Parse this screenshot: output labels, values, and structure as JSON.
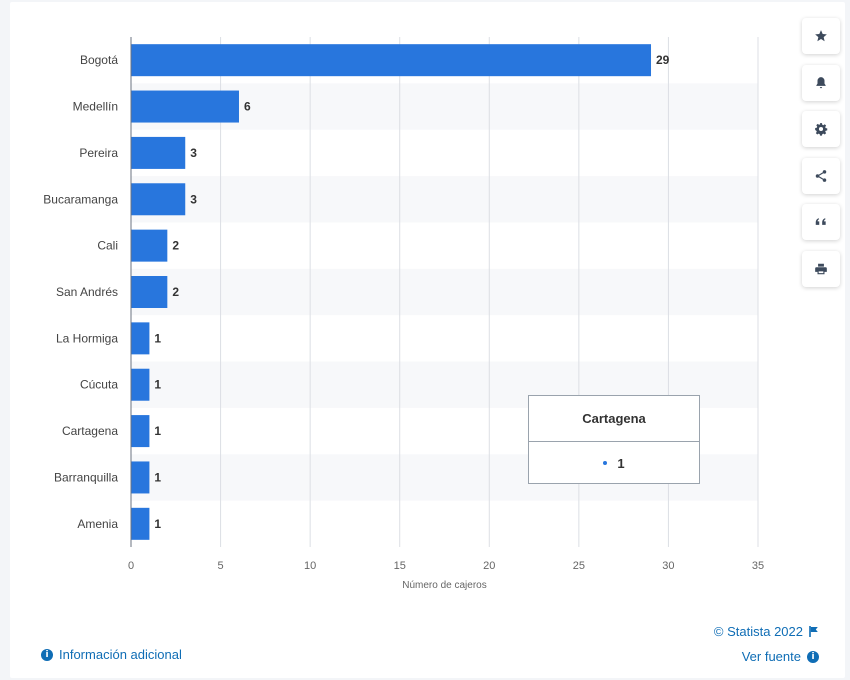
{
  "chart_data": {
    "type": "bar",
    "orientation": "horizontal",
    "categories": [
      "Bogotá",
      "Medellín",
      "Pereira",
      "Bucaramanga",
      "Cali",
      "San Andrés",
      "La Hormiga",
      "Cúcuta",
      "Cartagena",
      "Barranquilla",
      "Amenia"
    ],
    "values": [
      29,
      6,
      3,
      3,
      2,
      2,
      1,
      1,
      1,
      1,
      1
    ],
    "xlabel": "Número de cajeros",
    "xlim": [
      0,
      35
    ],
    "xticks": [
      0,
      5,
      10,
      15,
      20,
      25,
      30,
      35
    ],
    "grid": true,
    "bar_color": "#2876dd",
    "data_labels": true
  },
  "tooltip": {
    "title": "Cartagena",
    "value": "1"
  },
  "toolbar": {
    "buttons": [
      {
        "name": "star-button",
        "icon": "star-icon"
      },
      {
        "name": "notification-button",
        "icon": "bell-icon"
      },
      {
        "name": "settings-button",
        "icon": "gear-icon"
      },
      {
        "name": "share-button",
        "icon": "share-icon"
      },
      {
        "name": "cite-button",
        "icon": "quote-icon"
      },
      {
        "name": "print-button",
        "icon": "print-icon"
      }
    ]
  },
  "footer": {
    "additional_info": "Información adicional",
    "copyright": "© Statista 2022",
    "source": "Ver fuente",
    "info_glyph": "i"
  }
}
